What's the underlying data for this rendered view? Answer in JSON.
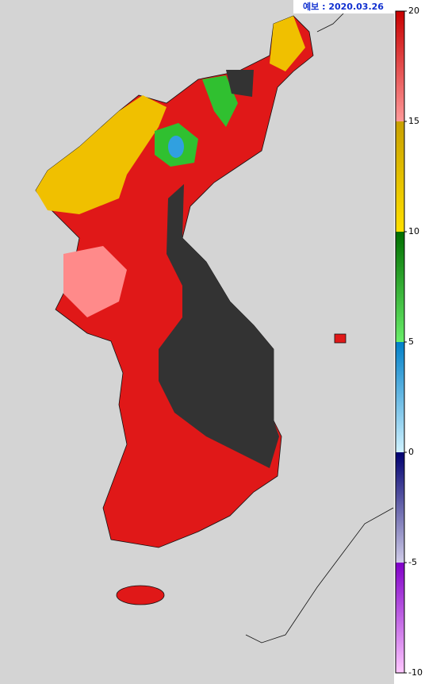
{
  "header": {
    "label": "예보 : 2020.03.26"
  },
  "colorbar": {
    "range": [
      -10,
      20
    ],
    "ticks": [
      20,
      15,
      10,
      5,
      0,
      -5,
      -10
    ],
    "segment_colors": [
      [
        "#c80000",
        "#ff9a9a"
      ],
      [
        "#c8a000",
        "#ffe000"
      ],
      [
        "#006e00",
        "#6aee6a"
      ],
      [
        "#0080c8",
        "#d0f2ff"
      ],
      [
        "#000070",
        "#d0cce8"
      ],
      [
        "#8000c8",
        "#ffc8ff"
      ]
    ]
  }
}
